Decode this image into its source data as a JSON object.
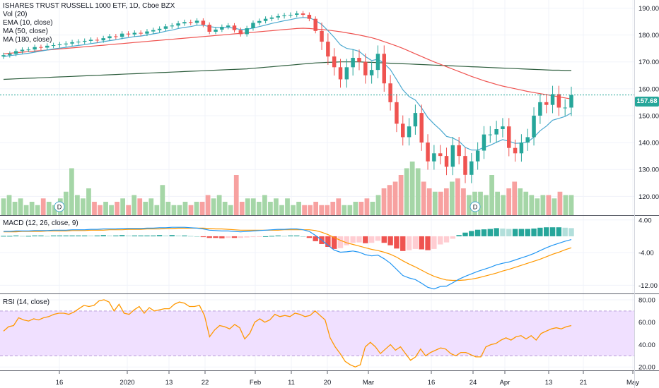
{
  "header": {
    "title": "ISHARES TRUST RUSSELL 1000 ETF, 1D, Cboe BZX",
    "indicators": [
      "Vol (20)",
      "EMA (10, close)",
      "MA (50, close)",
      "MA (180, close)"
    ]
  },
  "last_price_label": "157.68",
  "dividend_marker": "D",
  "colors": {
    "up": "#26a69a",
    "down": "#ef5350",
    "vol_up": "#a5d6a7",
    "vol_down": "#f7a1a0",
    "ema": "#4aa8cf",
    "ma50": "#ef5350",
    "ma180": "#2e5e3e",
    "macd_line": "#2196f3",
    "signal_line": "#ff9800",
    "rsi_line": "#ff9800",
    "rsi_band": "#f0e0ff"
  },
  "chart_data": [
    {
      "type": "candlestick",
      "title": "ISHARES TRUST RUSSELL 1000 ETF, 1D, Cboe BZX",
      "x_tick_labels": [
        "16",
        "2020",
        "13",
        "22",
        "Feb",
        "11",
        "20",
        "Mar",
        "16",
        "24",
        "Apr",
        "13",
        "21",
        "May"
      ],
      "y_ticks": [
        120,
        130,
        140,
        150,
        160,
        170,
        180,
        190
      ],
      "ylim": [
        113,
        193
      ],
      "last_price": 157.68,
      "close": [
        172.5,
        173,
        174,
        174.5,
        174.6,
        175.5,
        175.3,
        176,
        176.2,
        176.5,
        176.8,
        177.3,
        177.5,
        177.8,
        178.2,
        178,
        178.8,
        179.5,
        179.3,
        180.5,
        180.2,
        180.8,
        180.5,
        181.3,
        181.8,
        182.3,
        183.2,
        183.5,
        184.3,
        184.8,
        184.5,
        185.3,
        183.8,
        181.2,
        182,
        183,
        183.5,
        181.8,
        180.3,
        182.5,
        184.5,
        185.2,
        186,
        186.5,
        187,
        187.3,
        187.5,
        188,
        187.5,
        186,
        181.5,
        177.5,
        172,
        168,
        163.5,
        168,
        171.5,
        170,
        165,
        167,
        173,
        162,
        155,
        147,
        142,
        146,
        151,
        140,
        133,
        136,
        135,
        131,
        139,
        135,
        128,
        133,
        137,
        143,
        143,
        145,
        146,
        138,
        136,
        140,
        142,
        150,
        155,
        154,
        158,
        153,
        153,
        157.68
      ],
      "ma180": [
        163.5,
        163.6,
        163.7,
        163.8,
        163.9,
        164,
        164.1,
        164.2,
        164.3,
        164.4,
        164.5,
        164.6,
        164.7,
        164.8,
        164.9,
        165,
        165.1,
        165.2,
        165.3,
        165.4,
        165.5,
        165.6,
        165.7,
        165.8,
        165.9,
        166,
        166.1,
        166.2,
        166.3,
        166.4,
        166.5,
        166.6,
        166.7,
        166.8,
        166.9,
        167,
        167.1,
        167.2,
        167.3,
        167.4,
        167.6,
        167.8,
        168,
        168.2,
        168.4,
        168.6,
        168.8,
        169,
        169.2,
        169.4,
        169.6,
        169.7,
        169.8,
        169.9,
        170,
        170,
        170,
        170,
        169.9,
        169.8,
        169.7,
        169.6,
        169.5,
        169.4,
        169.3,
        169.2,
        169.1,
        169,
        168.9,
        168.8,
        168.7,
        168.6,
        168.5,
        168.4,
        168.3,
        168.2,
        168.1,
        168,
        167.9,
        167.8,
        167.7,
        167.6,
        167.5,
        167.4,
        167.3,
        167.2,
        167.1,
        167,
        166.9,
        166.9,
        166.8,
        166.8
      ],
      "ma50": [
        173,
        173.2,
        173.4,
        173.6,
        173.8,
        174,
        174.2,
        174.4,
        174.6,
        174.8,
        175,
        175.2,
        175.4,
        175.6,
        175.8,
        176,
        176.2,
        176.4,
        176.6,
        176.8,
        177,
        177.2,
        177.4,
        177.6,
        177.8,
        178,
        178.2,
        178.4,
        178.6,
        178.8,
        179,
        179.2,
        179.4,
        179.6,
        179.8,
        180,
        180.2,
        180.4,
        180.6,
        180.8,
        181,
        181.2,
        181.4,
        181.6,
        181.8,
        182,
        182.2,
        182.4,
        182.5,
        182.4,
        182.2,
        182,
        181.8,
        181.5,
        181.2,
        180.8,
        180.4,
        180,
        179.5,
        179,
        178.3,
        177.5,
        176.7,
        175.9,
        175,
        174,
        173,
        172,
        171,
        170,
        169.1,
        168.2,
        167.3,
        166.4,
        165.5,
        164.6,
        163.8,
        163,
        162.3,
        161.6,
        161,
        160.5,
        160,
        159.5,
        159,
        158.6,
        158.2,
        157.8,
        157.4,
        157,
        156.6,
        156.2
      ],
      "ema10": [
        172,
        172.3,
        172.6,
        172.9,
        173.2,
        173.6,
        174,
        174.4,
        174.8,
        175.1,
        175.4,
        175.8,
        176.1,
        176.4,
        176.8,
        177.1,
        177.5,
        177.9,
        178.2,
        178.7,
        179,
        179.4,
        179.6,
        180,
        180.4,
        180.8,
        181.4,
        181.8,
        182.4,
        182.8,
        183.1,
        183.6,
        183.6,
        183.1,
        182.8,
        182.7,
        182.8,
        182.5,
        182,
        182.1,
        182.6,
        183.1,
        183.7,
        184.3,
        184.8,
        185.3,
        185.7,
        186.2,
        186.5,
        186.4,
        185.4,
        183.9,
        181.6,
        179.1,
        176.3,
        175,
        174.6,
        173.9,
        172,
        170.5,
        171,
        169.4,
        167.1,
        163.4,
        159.6,
        157.1,
        155.8,
        152.9,
        149.3,
        146.9,
        144.8,
        142.3,
        141.7,
        140.5,
        138.2,
        137.2,
        137.2,
        138.2,
        139,
        140.1,
        141.1,
        140.5,
        139.7,
        139.8,
        140.2,
        142,
        144.4,
        146.1,
        148.3,
        149,
        149.7,
        151
      ]
    },
    {
      "type": "bar",
      "title": "Vol (20)",
      "values": [
        5,
        6,
        4,
        5,
        3,
        4,
        3,
        5,
        4,
        3,
        5,
        7,
        14,
        6,
        5,
        8,
        4,
        3,
        4,
        3,
        4,
        5,
        3,
        6,
        5,
        4,
        5,
        3,
        9,
        4,
        3,
        3,
        4,
        3,
        4,
        4,
        6,
        5,
        6,
        4,
        3,
        12,
        4,
        5,
        5,
        4,
        6,
        4,
        5,
        3,
        5,
        3,
        4,
        3,
        3,
        4,
        3,
        3,
        4,
        5,
        3,
        3,
        4,
        4,
        5,
        4,
        6,
        8,
        9,
        10,
        12,
        14,
        16,
        14,
        10,
        8,
        7,
        7,
        8,
        10,
        11,
        8,
        6,
        7,
        7,
        6,
        12,
        7,
        6,
        8,
        10,
        8,
        7,
        6,
        5,
        6,
        6,
        5,
        7,
        6,
        6
      ]
    },
    {
      "type": "line",
      "title": "MACD (12, 26, close, 9)",
      "y_ticks": [
        4,
        -4,
        -12
      ],
      "ylim": [
        -14,
        5
      ],
      "macd": [
        1.2,
        1.2,
        1.3,
        1.3,
        1.3,
        1.4,
        1.4,
        1.4,
        1.5,
        1.5,
        1.5,
        1.6,
        1.6,
        1.6,
        1.7,
        1.7,
        1.8,
        1.8,
        1.8,
        1.9,
        1.9,
        1.9,
        1.9,
        2,
        2,
        2.1,
        2.1,
        2.2,
        2.2,
        2.2,
        2.1,
        2,
        1.8,
        1.5,
        1.4,
        1.3,
        1.3,
        1.2,
        1.1,
        1.2,
        1.3,
        1.4,
        1.5,
        1.6,
        1.7,
        1.7,
        1.8,
        1.8,
        1.6,
        1.2,
        0.2,
        -0.9,
        -2.2,
        -3.4,
        -3.9,
        -3.8,
        -3.6,
        -3.9,
        -4.5,
        -4.8,
        -4.6,
        -5.5,
        -6.6,
        -8.1,
        -9.6,
        -10.2,
        -10.6,
        -11.5,
        -12.5,
        -12.9,
        -12.3,
        -12.2,
        -11.4,
        -10.5,
        -9.8,
        -9.2,
        -8.6,
        -8.1,
        -7.6,
        -7,
        -6.6,
        -6.3,
        -5.8,
        -5.3,
        -4.8,
        -4.2,
        -3.5,
        -2.8,
        -2.2,
        -1.7,
        -1.2,
        -0.8
      ],
      "signal": [
        1.1,
        1.1,
        1.1,
        1.2,
        1.2,
        1.2,
        1.2,
        1.3,
        1.3,
        1.3,
        1.3,
        1.4,
        1.4,
        1.4,
        1.5,
        1.5,
        1.5,
        1.6,
        1.6,
        1.6,
        1.7,
        1.7,
        1.7,
        1.8,
        1.8,
        1.8,
        1.9,
        1.9,
        2,
        2,
        2,
        2,
        2,
        1.9,
        1.8,
        1.8,
        1.7,
        1.6,
        1.5,
        1.5,
        1.5,
        1.5,
        1.5,
        1.5,
        1.5,
        1.6,
        1.6,
        1.6,
        1.6,
        1.6,
        1.4,
        1,
        0.4,
        -0.3,
        -1,
        -1.6,
        -2,
        -2.4,
        -2.8,
        -3.2,
        -3.5,
        -3.9,
        -4.4,
        -5.1,
        -6,
        -6.8,
        -7.5,
        -8.3,
        -9.1,
        -9.8,
        -10.3,
        -10.7,
        -10.8,
        -10.8,
        -10.7,
        -10.5,
        -10.2,
        -9.8,
        -9.4,
        -9,
        -8.5,
        -8.1,
        -7.6,
        -7.1,
        -6.6,
        -6.1,
        -5.6,
        -5,
        -4.4,
        -3.9,
        -3.3,
        -2.8
      ]
    },
    {
      "type": "line",
      "title": "RSI (14, close)",
      "y_ticks": [
        80,
        60,
        40,
        20
      ],
      "ylim": [
        17,
        85
      ],
      "band": [
        30,
        70
      ],
      "values": [
        52,
        56,
        57,
        64,
        62,
        61,
        63,
        62,
        64,
        65,
        67,
        68,
        68,
        67,
        69,
        72,
        75,
        74,
        75,
        79,
        80,
        78,
        70,
        76,
        68,
        67,
        71,
        74,
        68,
        73,
        70,
        71,
        72,
        72,
        76,
        78,
        77,
        74,
        74,
        75,
        66,
        47,
        53,
        57,
        56,
        54,
        58,
        55,
        45,
        50,
        60,
        63,
        60,
        62,
        67,
        65,
        66,
        65,
        68,
        67,
        65,
        66,
        70,
        66,
        62,
        46,
        38,
        32,
        25,
        22,
        20,
        22,
        38,
        42,
        38,
        32,
        36,
        40,
        35,
        38,
        32,
        26,
        29,
        36,
        30,
        33,
        35,
        37,
        36,
        32,
        30,
        33,
        33,
        31,
        29,
        29,
        38,
        40,
        41,
        44,
        46,
        44,
        47,
        48,
        45,
        48,
        44,
        50,
        52,
        54,
        55,
        54,
        56,
        57
      ]
    }
  ]
}
